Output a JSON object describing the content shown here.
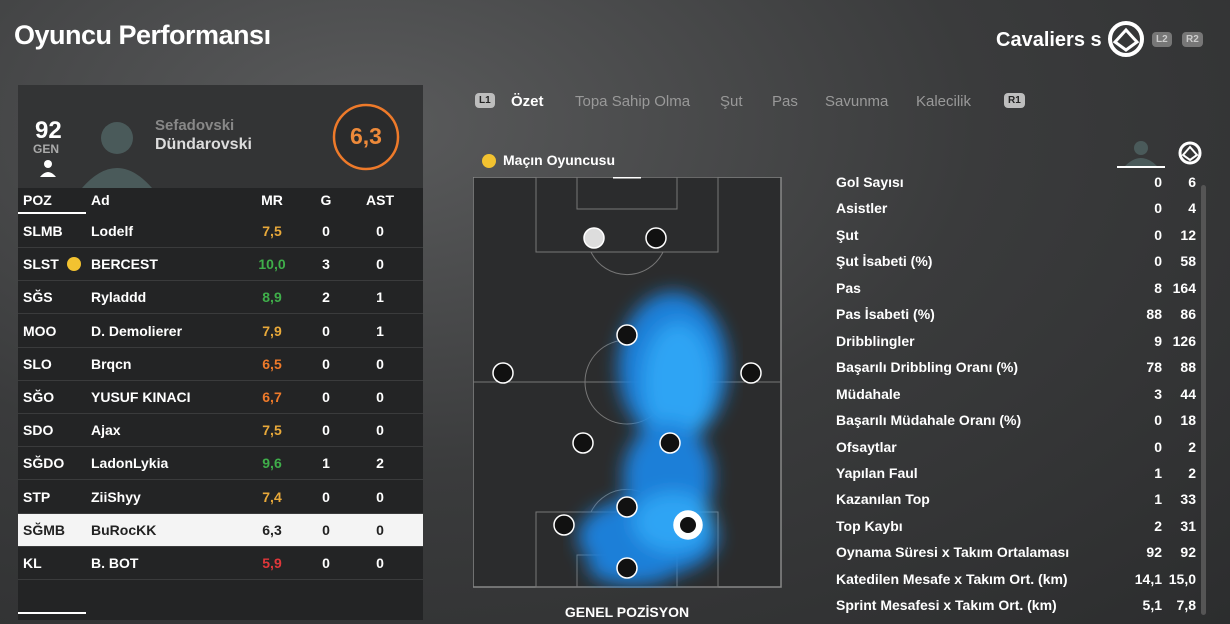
{
  "header": {
    "title": "Oyuncu Performansı",
    "team": "Cavaliers s",
    "buttons": [
      "L2",
      "R2"
    ]
  },
  "player": {
    "overall": "92",
    "overall_label": "GEN",
    "first_name": "Sefadovski",
    "last_name": "Dündarovski",
    "match_rating": "6,3"
  },
  "table": {
    "columns": [
      "POZ",
      "Ad",
      "MR",
      "G",
      "AST"
    ],
    "rows": [
      [
        "SLMB",
        "Lodelf",
        "7,5",
        "0",
        "0"
      ],
      [
        "SLST",
        "BERCEST",
        "10,0",
        "3",
        "0"
      ],
      [
        "SĞS",
        "Ryladdd",
        "8,9",
        "2",
        "1"
      ],
      [
        "MOO",
        "D. Demolierer",
        "7,9",
        "0",
        "1"
      ],
      [
        "SLO",
        "Brqcn",
        "6,5",
        "0",
        "0"
      ],
      [
        "SĞO",
        "YUSUF KINACI",
        "6,7",
        "0",
        "0"
      ],
      [
        "SDO",
        "Ajax",
        "7,5",
        "0",
        "0"
      ],
      [
        "SĞDO",
        "LadonLykia",
        "9,6",
        "1",
        "2"
      ],
      [
        "STP",
        "ZiiShyy",
        "7,4",
        "0",
        "0"
      ],
      [
        "SĞMB",
        "BuRocKK",
        "6,3",
        "0",
        "0"
      ],
      [
        "KL",
        "B. BOT",
        "5,9",
        "0",
        "0"
      ]
    ],
    "mr_colors": [
      "#e8a93a",
      "#3fae4a",
      "#3fae4a",
      "#e8a93a",
      "#ee7a2a",
      "#ee7a2a",
      "#e8a93a",
      "#3fae4a",
      "#e8a93a",
      "#222222",
      "#e0373a"
    ],
    "selected_row": 9,
    "motm_row": 1
  },
  "tabs": {
    "left_button": "L1",
    "right_button": "R1",
    "items": [
      "Özet",
      "Topa Sahip Olma",
      "Şut",
      "Pas",
      "Savunma",
      "Kalecilik"
    ],
    "active": 0
  },
  "pitch": {
    "label": "Maçın Oyuncusu",
    "caption": "GENEL POZİSYON"
  },
  "stats": {
    "rows": [
      [
        "Gol Sayısı",
        "0",
        "6"
      ],
      [
        "Asistler",
        "0",
        "4"
      ],
      [
        "Şut",
        "0",
        "12"
      ],
      [
        "Şut İsabeti (%)",
        "0",
        "58"
      ],
      [
        "Pas",
        "8",
        "164"
      ],
      [
        "Pas İsabeti (%)",
        "88",
        "86"
      ],
      [
        "Dribblingler",
        "9",
        "126"
      ],
      [
        "Başarılı Dribbling Oranı (%)",
        "78",
        "88"
      ],
      [
        "Müdahale",
        "3",
        "44"
      ],
      [
        "Başarılı Müdahale Oranı (%)",
        "0",
        "18"
      ],
      [
        "Ofsaytlar",
        "0",
        "2"
      ],
      [
        "Yapılan Faul",
        "1",
        "2"
      ],
      [
        "Kazanılan Top",
        "1",
        "33"
      ],
      [
        "Top Kaybı",
        "2",
        "31"
      ],
      [
        "Oynama Süresi x Takım Ortalaması",
        "92",
        "92"
      ],
      [
        "Katedilen Mesafe x Takım Ort. (km)",
        "14,1",
        "15,0"
      ],
      [
        "Sprint Mesafesi x Takım Ort. (km)",
        "5,1",
        "7,8"
      ]
    ]
  }
}
